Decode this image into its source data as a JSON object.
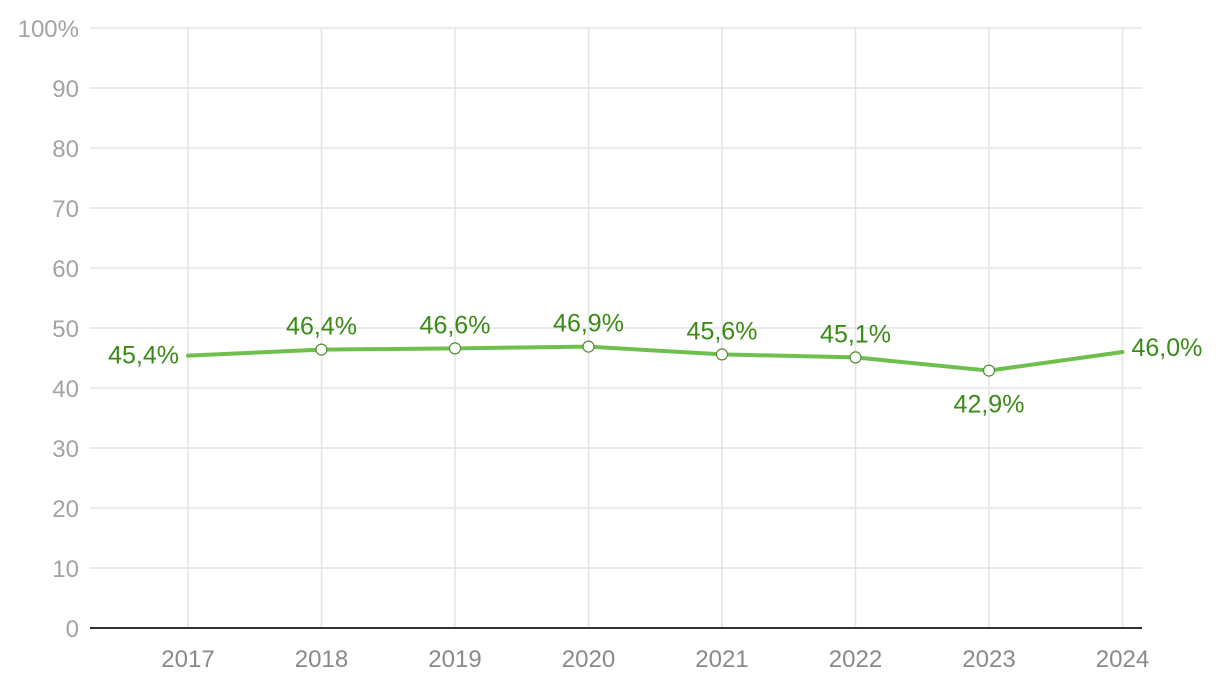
{
  "chart_data": {
    "type": "line",
    "title": "",
    "xlabel": "",
    "ylabel": "",
    "categories": [
      "2017",
      "2018",
      "2019",
      "2020",
      "2021",
      "2022",
      "2023",
      "2024"
    ],
    "series": [
      {
        "values": [
          45.4,
          46.4,
          46.6,
          46.9,
          45.6,
          45.1,
          42.9,
          46.0
        ],
        "labels": [
          "45,4%",
          "46,4%",
          "46,6%",
          "46,9%",
          "45,6%",
          "45,1%",
          "42,9%",
          "46,0%"
        ],
        "color": "#6fbf4f",
        "label_color": "#3a8a17"
      }
    ],
    "ylim": [
      0,
      100
    ],
    "yticks": [
      0,
      10,
      20,
      30,
      40,
      50,
      60,
      70,
      80,
      90,
      100
    ],
    "ytick_labels": [
      "0",
      "10",
      "20",
      "30",
      "40",
      "50",
      "60",
      "70",
      "80",
      "90",
      "100%"
    ],
    "grid": true,
    "legend": "none"
  }
}
